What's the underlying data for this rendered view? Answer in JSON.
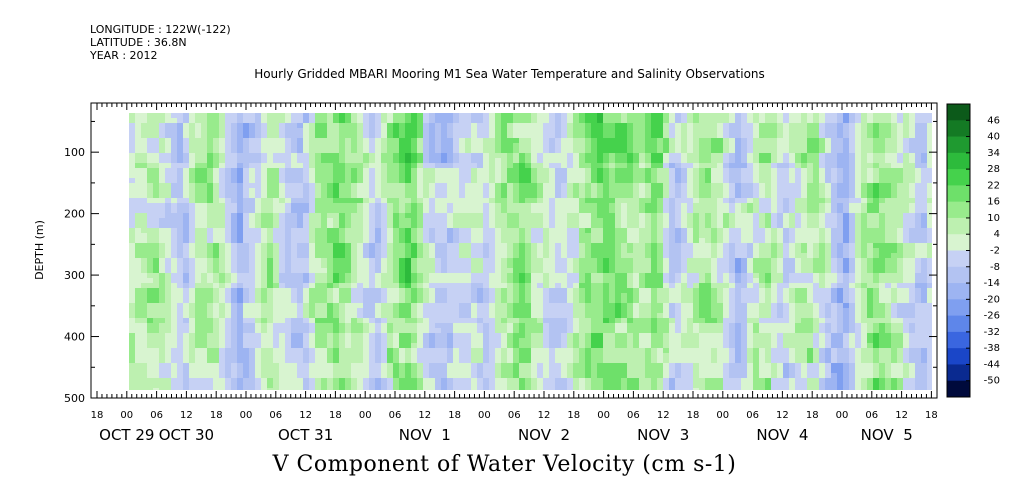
{
  "header": {
    "longitude": "LONGITUDE : 122W(-122)",
    "latitude": "LATITUDE : 36.8N",
    "year": "YEAR : 2012"
  },
  "chart_data": {
    "type": "heatmap",
    "title": "Hourly Gridded MBARI Mooring M1 Sea Water Temperature and Salinity Observations",
    "xlabel": "V Component of Water Velocity (cm s-1)",
    "ylabel": "DEPTH (m)",
    "y_ticks": [
      100,
      200,
      300,
      400,
      500
    ],
    "y_range": [
      20,
      500
    ],
    "y_reversed": true,
    "x_hour_ticks": [
      "18",
      "00",
      "06",
      "12",
      "18",
      "00",
      "06",
      "12",
      "18",
      "00",
      "06",
      "12",
      "18",
      "00",
      "06",
      "12",
      "18",
      "00",
      "06",
      "12",
      "18",
      "00",
      "06",
      "12",
      "18",
      "00",
      "06",
      "12",
      "18"
    ],
    "x_day_labels": [
      {
        "label": "OCT 29",
        "tick": 1
      },
      {
        "label": "OCT 30",
        "tick": 3
      },
      {
        "label": "OCT 31",
        "tick": 7
      },
      {
        "label": "NOV  1",
        "tick": 11
      },
      {
        "label": "NOV  2",
        "tick": 15
      },
      {
        "label": "NOV  3",
        "tick": 19
      },
      {
        "label": "NOV  4",
        "tick": 23
      },
      {
        "label": "NOV  5",
        "tick": 26.5
      }
    ],
    "colorbar": {
      "levels": [
        "46",
        "40",
        "34",
        "28",
        "22",
        "16",
        "10",
        "4",
        "-2",
        "-8",
        "-14",
        "-20",
        "-26",
        "-32",
        "-38",
        "-44",
        "-50"
      ],
      "min": -50,
      "max": 50,
      "palette": [
        "#000a3c",
        "#0a2a90",
        "#1a46c8",
        "#3a66e0",
        "#5e86ea",
        "#7f9ff0",
        "#9db4f2",
        "#b3c3f2",
        "#c6d1f4",
        "#d8f4d0",
        "#bdf0b0",
        "#98eb8c",
        "#6ee06a",
        "#45d24c",
        "#2dbb3c",
        "#1f9a30",
        "#147a24",
        "#0c5a1a"
      ]
    },
    "data_description": "Alternating blue (southward) and green (northward) vertical bands from the surface (~20 m) to ~490 m, with strongest green bands near Oct 31 12:00, Nov 1, Nov 2 and Nov 3 and blue bands near Oct 30 12:00, Nov 1 06:00, Nov 3 12:00-18:00, Nov 4 18:00 and Nov 5 12:00.",
    "bands": [
      {
        "t": 0.0,
        "v": 6
      },
      {
        "t": 0.3,
        "v": 10
      },
      {
        "t": 0.55,
        "v": 4
      },
      {
        "t": 0.8,
        "v": -10
      },
      {
        "t": 1.0,
        "v": 8
      },
      {
        "t": 1.4,
        "v": 12
      },
      {
        "t": 1.75,
        "v": -14
      },
      {
        "t": 2.0,
        "v": -6
      },
      {
        "t": 2.25,
        "v": 10
      },
      {
        "t": 2.5,
        "v": -4
      },
      {
        "t": 2.75,
        "v": -10
      },
      {
        "t": 3.0,
        "v": 14
      },
      {
        "t": 3.35,
        "v": 18
      },
      {
        "t": 3.7,
        "v": 6
      },
      {
        "t": 3.95,
        "v": -8
      },
      {
        "t": 4.2,
        "v": 12
      },
      {
        "t": 4.5,
        "v": 22
      },
      {
        "t": 4.8,
        "v": -2
      },
      {
        "t": 5.1,
        "v": -8
      },
      {
        "t": 5.4,
        "v": 2
      },
      {
        "t": 5.7,
        "v": -4
      },
      {
        "t": 6.0,
        "v": 10
      },
      {
        "t": 6.3,
        "v": 16
      },
      {
        "t": 6.6,
        "v": 6
      },
      {
        "t": 6.85,
        "v": -4
      },
      {
        "t": 7.1,
        "v": 4
      },
      {
        "t": 7.35,
        "v": 14
      },
      {
        "t": 7.6,
        "v": 22
      },
      {
        "t": 7.9,
        "v": 16
      },
      {
        "t": 8.2,
        "v": 10
      },
      {
        "t": 8.5,
        "v": 20
      },
      {
        "t": 8.8,
        "v": -6
      },
      {
        "t": 9.05,
        "v": 8
      },
      {
        "t": 9.3,
        "v": 14
      },
      {
        "t": 9.55,
        "v": 6
      },
      {
        "t": 9.8,
        "v": -8
      },
      {
        "t": 10.05,
        "v": 4
      },
      {
        "t": 10.3,
        "v": 10
      },
      {
        "t": 10.55,
        "v": -6
      },
      {
        "t": 10.8,
        "v": 8
      },
      {
        "t": 11.05,
        "v": 12
      },
      {
        "t": 11.3,
        "v": -4
      },
      {
        "t": 11.55,
        "v": -16
      },
      {
        "t": 11.8,
        "v": 6
      },
      {
        "t": 12.05,
        "v": 16
      },
      {
        "t": 12.3,
        "v": 10
      },
      {
        "t": 12.55,
        "v": 2
      },
      {
        "t": 12.8,
        "v": -8
      },
      {
        "t": 13.0,
        "v": 4
      }
    ]
  }
}
